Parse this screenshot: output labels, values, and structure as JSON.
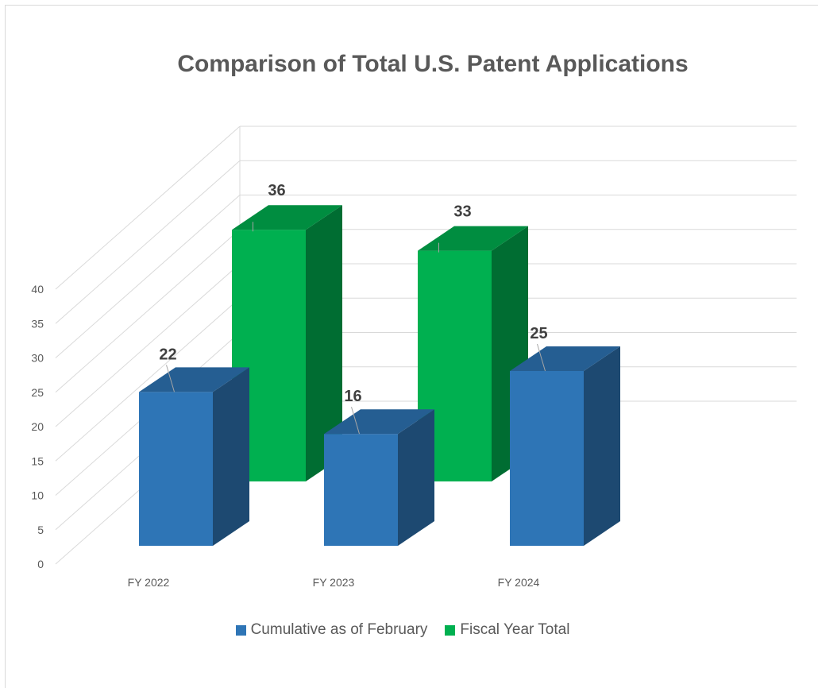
{
  "chart_data": {
    "type": "bar",
    "title": "Comparison of Total U.S. Patent Applications",
    "xlabel": "",
    "ylabel": "",
    "ylim": [
      0,
      40
    ],
    "y_ticks": [
      "0",
      "5",
      "10",
      "15",
      "20",
      "25",
      "30",
      "35",
      "40"
    ],
    "categories": [
      "FY 2022",
      "FY 2023",
      "FY 2024"
    ],
    "series": [
      {
        "name": "Cumulative as of February",
        "values": [
          22,
          16,
          25
        ],
        "data_labels": [
          "22",
          "16",
          "25"
        ],
        "color": "#2e75b6"
      },
      {
        "name": "Fiscal Year Total",
        "values": [
          36,
          33,
          null
        ],
        "data_labels": [
          "36",
          "33",
          ""
        ],
        "color": "#00b050"
      }
    ],
    "grid": true,
    "legend_position": "bottom",
    "style": "3d-clustered-column"
  }
}
